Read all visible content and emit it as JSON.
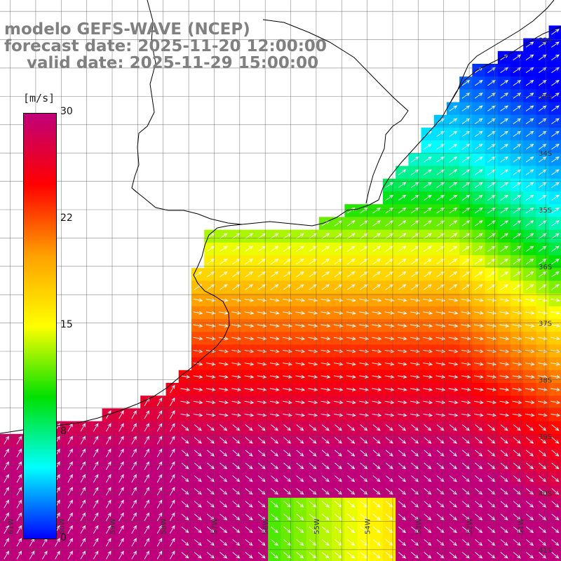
{
  "title": {
    "line1": "modelo GEFS-WAVE (NCEP)",
    "line2": "forecast date: 2025-11-20 12:00:00",
    "line3": "    valid date: 2025-11-29 15:00:00"
  },
  "colorbar": {
    "unit": "[m/s]",
    "ticks": [
      "30",
      "22",
      "15",
      "8",
      "0"
    ],
    "tick_values": [
      30,
      22,
      15,
      8,
      0
    ],
    "range": [
      0,
      30
    ],
    "colors": [
      "#0000ff",
      "#00ffff",
      "#00e000",
      "#ffff00",
      "#ffa000",
      "#ff0000",
      "#c0007a"
    ]
  },
  "map": {
    "variable": "wind speed with wind direction arrows",
    "lon_range": [
      -61.2,
      -50.2
    ],
    "lat_range": [
      -41.2,
      -31.3
    ],
    "lon_labels": [
      "61W",
      "60W",
      "59W",
      "58W",
      "57W",
      "56W",
      "55W",
      "54W",
      "53W",
      "52W",
      "51W"
    ],
    "lat_labels": [
      "32S",
      "33S",
      "34S",
      "35S",
      "36S",
      "37S",
      "38S",
      "39S",
      "40S",
      "41S"
    ],
    "land_color": "#ffffff",
    "grid_color": "#555555",
    "arrow_color": "#ffffff"
  }
}
